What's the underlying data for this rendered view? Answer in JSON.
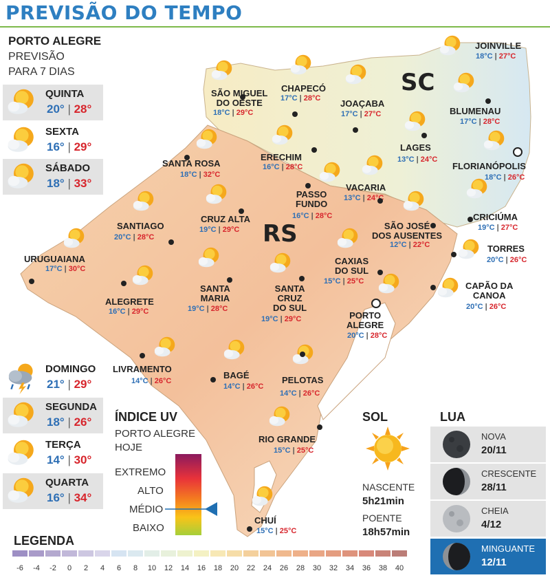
{
  "header": {
    "title": "PREVISÃO DO TEMPO"
  },
  "forecast": {
    "city": "PORTO ALEGRE",
    "subtitle_1": "PREVISÃO",
    "subtitle_2": "PARA 7 DIAS",
    "days": [
      {
        "name": "QUINTA",
        "min": "20°",
        "max": "28°",
        "icon": "sun-cloud-icon"
      },
      {
        "name": "SEXTA",
        "min": "16°",
        "max": "29°",
        "icon": "sun-cloud-icon"
      },
      {
        "name": "SÁBADO",
        "min": "18°",
        "max": "33°",
        "icon": "sun-cloud-icon"
      },
      {
        "name": "DOMINGO",
        "min": "21°",
        "max": "29°",
        "icon": "storm-icon"
      },
      {
        "name": "SEGUNDA",
        "min": "18°",
        "max": "26°",
        "icon": "sun-cloud-icon"
      },
      {
        "name": "TERÇA",
        "min": "14°",
        "max": "30°",
        "icon": "sun-cloud-icon"
      },
      {
        "name": "QUARTA",
        "min": "16°",
        "max": "34°",
        "icon": "sun-cloud-icon"
      }
    ]
  },
  "map": {
    "state_rs": "RS",
    "state_sc": "SC",
    "cities": [
      {
        "name": "JOINVILLE",
        "min": "18°C",
        "max": "27°C"
      },
      {
        "name": "SÃO MIGUEL\nDO OESTE",
        "min": "18°C",
        "max": "29°C"
      },
      {
        "name": "CHAPECÓ",
        "min": "17°C",
        "max": "28°C"
      },
      {
        "name": "JOAÇABA",
        "min": "17°C",
        "max": "27°C"
      },
      {
        "name": "BLUMENAU",
        "min": "17°C",
        "max": "28°C"
      },
      {
        "name": "LAGES",
        "min": "13°C",
        "max": "24°C"
      },
      {
        "name": "FLORIANÓPOLIS",
        "min": "18°C",
        "max": "26°C"
      },
      {
        "name": "SANTA ROSA",
        "min": "18°C",
        "max": "32°C"
      },
      {
        "name": "ERECHIM",
        "min": "16°C",
        "max": "28°C"
      },
      {
        "name": "PASSO\nFUNDO",
        "min": "16°C",
        "max": "28°C"
      },
      {
        "name": "VACARIA",
        "min": "13°C",
        "max": "24°C"
      },
      {
        "name": "CRICIÚMA",
        "min": "19°C",
        "max": "27°C"
      },
      {
        "name": "SANTIAGO",
        "min": "20°C",
        "max": "28°C"
      },
      {
        "name": "CRUZ ALTA",
        "min": "19°C",
        "max": "29°C"
      },
      {
        "name": "SÃO JOSÉ\nDOS AUSENTES",
        "min": "12°C",
        "max": "22°C"
      },
      {
        "name": "TORRES",
        "min": "20°C",
        "max": "26°C"
      },
      {
        "name": "URUGUAIANA",
        "min": "17°C",
        "max": "30°C"
      },
      {
        "name": "CAXIAS\nDO SUL",
        "min": "15°C",
        "max": "25°C"
      },
      {
        "name": "CAPÃO DA\nCANOA",
        "min": "20°C",
        "max": "26°C"
      },
      {
        "name": "ALEGRETE",
        "min": "16°C",
        "max": "29°C"
      },
      {
        "name": "SANTA\nMARIA",
        "min": "19°C",
        "max": "28°C"
      },
      {
        "name": "SANTA\nCRUZ\nDO SUL",
        "min": "19°C",
        "max": "29°C"
      },
      {
        "name": "PORTO\nALEGRE",
        "min": "20°C",
        "max": "28°C"
      },
      {
        "name": "LIVRAMENTO",
        "min": "14°C",
        "max": "26°C"
      },
      {
        "name": "BAGÉ",
        "min": "14°C",
        "max": "26°C"
      },
      {
        "name": "PELOTAS",
        "min": "14°C",
        "max": "26°C"
      },
      {
        "name": "RIO GRANDE",
        "min": "15°C",
        "max": "25°C"
      },
      {
        "name": "CHUÍ",
        "min": "15°C",
        "max": "25°C"
      }
    ]
  },
  "uv": {
    "title": "ÍNDICE UV",
    "subtitle_1": "PORTO ALEGRE",
    "subtitle_2": "HOJE",
    "levels": [
      "EXTREMO",
      "ALTO",
      "MÉDIO",
      "BAIXO"
    ],
    "current_level": "MÉDIO",
    "colors": [
      "#8b1a5e",
      "#e8323a",
      "#f47b20",
      "#f9c318",
      "#a6cf3a"
    ]
  },
  "sun": {
    "title": "SOL",
    "sunrise_label": "NASCENTE",
    "sunrise": "5h21min",
    "sunset_label": "POENTE",
    "sunset": "18h57min"
  },
  "moon": {
    "title": "LUA",
    "phases": [
      {
        "phase": "NOVA",
        "date": "20/11"
      },
      {
        "phase": "CRESCENTE",
        "date": "28/11"
      },
      {
        "phase": "CHEIA",
        "date": "4/12"
      },
      {
        "phase": "MINGUANTE",
        "date": "12/11"
      }
    ],
    "active_color": "#1f6fb2"
  },
  "legend": {
    "title": "LEGENDA",
    "ticks": [
      "-6",
      "-4",
      "-2",
      "0",
      "2",
      "4",
      "6",
      "8",
      "10",
      "12",
      "14",
      "16",
      "18",
      "20",
      "22",
      "24",
      "26",
      "28",
      "30",
      "32",
      "34",
      "36",
      "38",
      "40"
    ],
    "colors": [
      "#9d8fc4",
      "#a99bc9",
      "#b4a9cf",
      "#c1b8d9",
      "#cdc7e1",
      "#d9d5ea",
      "#d6e4f2",
      "#dbe9f0",
      "#e2eee7",
      "#e8f1dc",
      "#eef2cf",
      "#f4f1c3",
      "#f7e8b5",
      "#f6dda8",
      "#f4d09c",
      "#f2c495",
      "#f0b98e",
      "#eeb089",
      "#e9a685",
      "#e49d80",
      "#de937c",
      "#d8897a",
      "#c98378",
      "#bb7d77"
    ]
  }
}
